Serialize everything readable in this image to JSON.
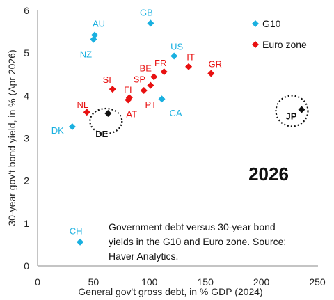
{
  "chart_data": {
    "type": "scatter",
    "xlabel": "General gov't gross debt, in % GDP (2024)",
    "ylabel": "30-year gov't bond yield, in % (Apr 2026)",
    "xlim": [
      0,
      250
    ],
    "ylim": [
      0,
      6
    ],
    "xticks": [
      0,
      50,
      100,
      150,
      200,
      250
    ],
    "yticks": [
      0,
      1,
      2,
      3,
      4,
      5,
      6
    ],
    "grid": false,
    "year_label": "2026",
    "note": [
      "Government debt versus 30-year bond",
      "yields in the G10 and Euro zone. Source:",
      "Haver Analytics."
    ],
    "legend_position": "top-right",
    "series": [
      {
        "name": "G10",
        "color": "#1ab0e0",
        "marker": "diamond",
        "points": [
          {
            "label": "GB",
            "x": 101,
            "y": 5.7
          },
          {
            "label": "AU",
            "x": 51,
            "y": 5.42
          },
          {
            "label": "NZ",
            "x": 50,
            "y": 5.32
          },
          {
            "label": "US",
            "x": 122,
            "y": 4.93
          },
          {
            "label": "CA",
            "x": 111,
            "y": 3.92
          },
          {
            "label": "DK",
            "x": 31,
            "y": 3.27
          },
          {
            "label": "CH",
            "x": 38,
            "y": 0.56
          }
        ]
      },
      {
        "name": "Euro zone",
        "color": "#e81010",
        "marker": "diamond",
        "points": [
          {
            "label": "IT",
            "x": 135,
            "y": 4.68
          },
          {
            "label": "GR",
            "x": 155,
            "y": 4.52
          },
          {
            "label": "FR",
            "x": 113,
            "y": 4.56
          },
          {
            "label": "BE",
            "x": 104,
            "y": 4.44
          },
          {
            "label": "SP",
            "x": 101,
            "y": 4.24
          },
          {
            "label": "PT",
            "x": 95,
            "y": 4.12
          },
          {
            "label": "SI",
            "x": 67,
            "y": 4.15
          },
          {
            "label": "FI",
            "x": 82,
            "y": 3.95
          },
          {
            "label": "AT",
            "x": 81,
            "y": 3.9
          },
          {
            "label": "NL",
            "x": 44,
            "y": 3.61
          }
        ]
      },
      {
        "name": "",
        "color": "#111111",
        "marker": "diamond",
        "circled": true,
        "points": [
          {
            "label": "DE",
            "x": 63,
            "y": 3.58
          },
          {
            "label": "JP",
            "x": 236,
            "y": 3.67
          }
        ]
      }
    ]
  }
}
